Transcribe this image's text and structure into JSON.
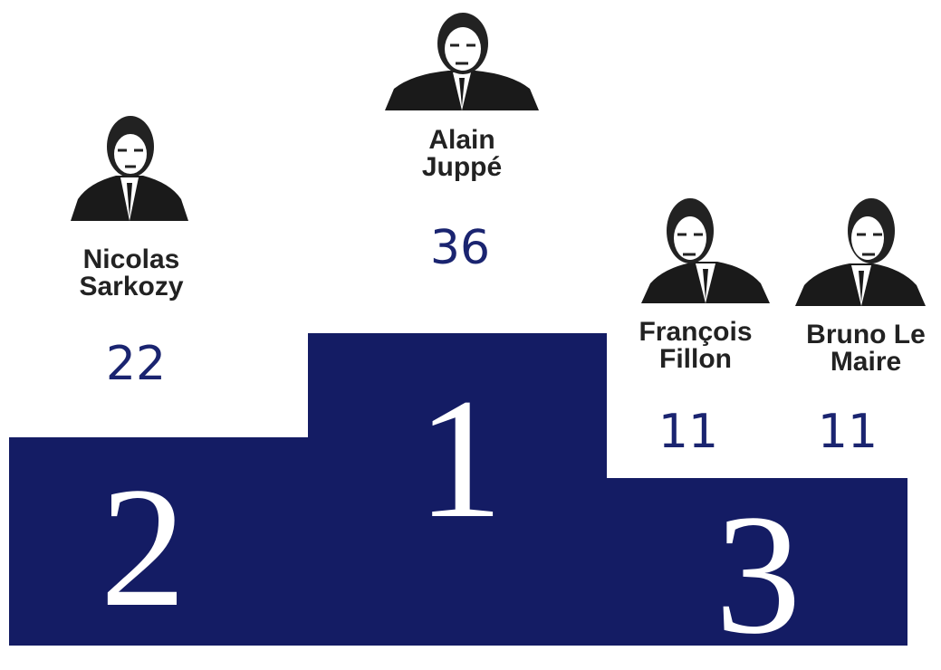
{
  "podium": {
    "steps": [
      {
        "rank": 2
      },
      {
        "rank": 1
      },
      {
        "rank": 3
      }
    ],
    "candidates": [
      {
        "name": "Nicolas Sarkozy",
        "score": 22
      },
      {
        "name": "Alain Juppé",
        "score": 36
      },
      {
        "name": "François Fillon",
        "score": 11
      },
      {
        "name": "Bruno Le Maire",
        "score": 11
      }
    ]
  }
}
